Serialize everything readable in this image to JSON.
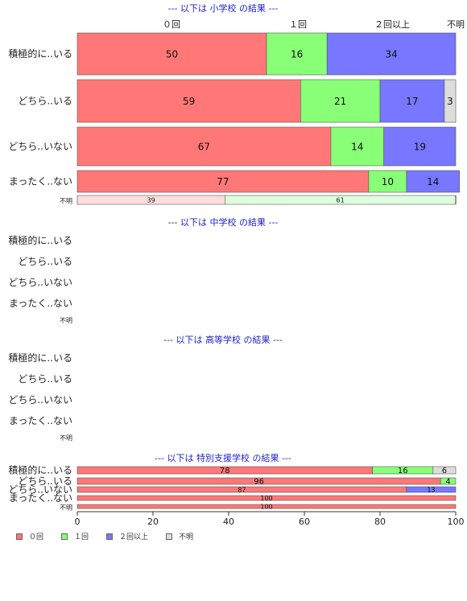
{
  "categories_top": [
    "０回",
    "１回",
    "２回以上",
    "不明"
  ],
  "category_colors": [
    "#ff7777",
    "#88ff77",
    "#7777ff",
    "#dddddd"
  ],
  "chart_data": {
    "type": "bar",
    "orientation": "horizontal",
    "stacked": "percent",
    "xlim": [
      0,
      100
    ],
    "x_ticks": [
      "0",
      "20",
      "40",
      "60",
      "80",
      "100"
    ],
    "legend": {
      "position": "bottom-left",
      "entries": [
        "０回",
        "１回",
        "２回以上",
        "不明"
      ]
    },
    "groups": [
      {
        "title": "--- 以下は 小学校 の結果 ---",
        "rows": [
          {
            "label": "積極的に..いる",
            "values": [
              50,
              16,
              34,
              0
            ]
          },
          {
            "label": "どちら..いる",
            "values": [
              59,
              21,
              17,
              3
            ]
          },
          {
            "label": "どちら..いない",
            "values": [
              67,
              14,
              19,
              0
            ]
          },
          {
            "label": "まったく..ない",
            "values": [
              77,
              10,
              14,
              0
            ]
          },
          {
            "label": "不明",
            "values": [
              39,
              61,
              0,
              0
            ]
          }
        ]
      },
      {
        "title": "--- 以下は 中学校 の結果 ---",
        "rows": [
          {
            "label": "積極的に..いる",
            "values": []
          },
          {
            "label": "どちら..いる",
            "values": []
          },
          {
            "label": "どちら..いない",
            "values": []
          },
          {
            "label": "まったく..ない",
            "values": []
          },
          {
            "label": "不明",
            "values": []
          }
        ]
      },
      {
        "title": "--- 以下は 高等学校 の結果 ---",
        "rows": [
          {
            "label": "積極的に..いる",
            "values": []
          },
          {
            "label": "どちら..いる",
            "values": []
          },
          {
            "label": "どちら..いない",
            "values": []
          },
          {
            "label": "まったく..ない",
            "values": []
          },
          {
            "label": "不明",
            "values": []
          }
        ]
      },
      {
        "title": "--- 以下は 特別支援学校 の結果 ---",
        "rows": [
          {
            "label": "積極的に..いる",
            "values": [
              78,
              16,
              0,
              6
            ]
          },
          {
            "label": "どちら..いる",
            "values": [
              96,
              4,
              0,
              0
            ]
          },
          {
            "label": "どちら..いない",
            "values": [
              87,
              0,
              13,
              0
            ]
          },
          {
            "label": "まったく..ない",
            "values": [
              100,
              0,
              0,
              0
            ]
          },
          {
            "label": "不明",
            "values": [
              100,
              0,
              0,
              0
            ]
          }
        ]
      }
    ]
  }
}
